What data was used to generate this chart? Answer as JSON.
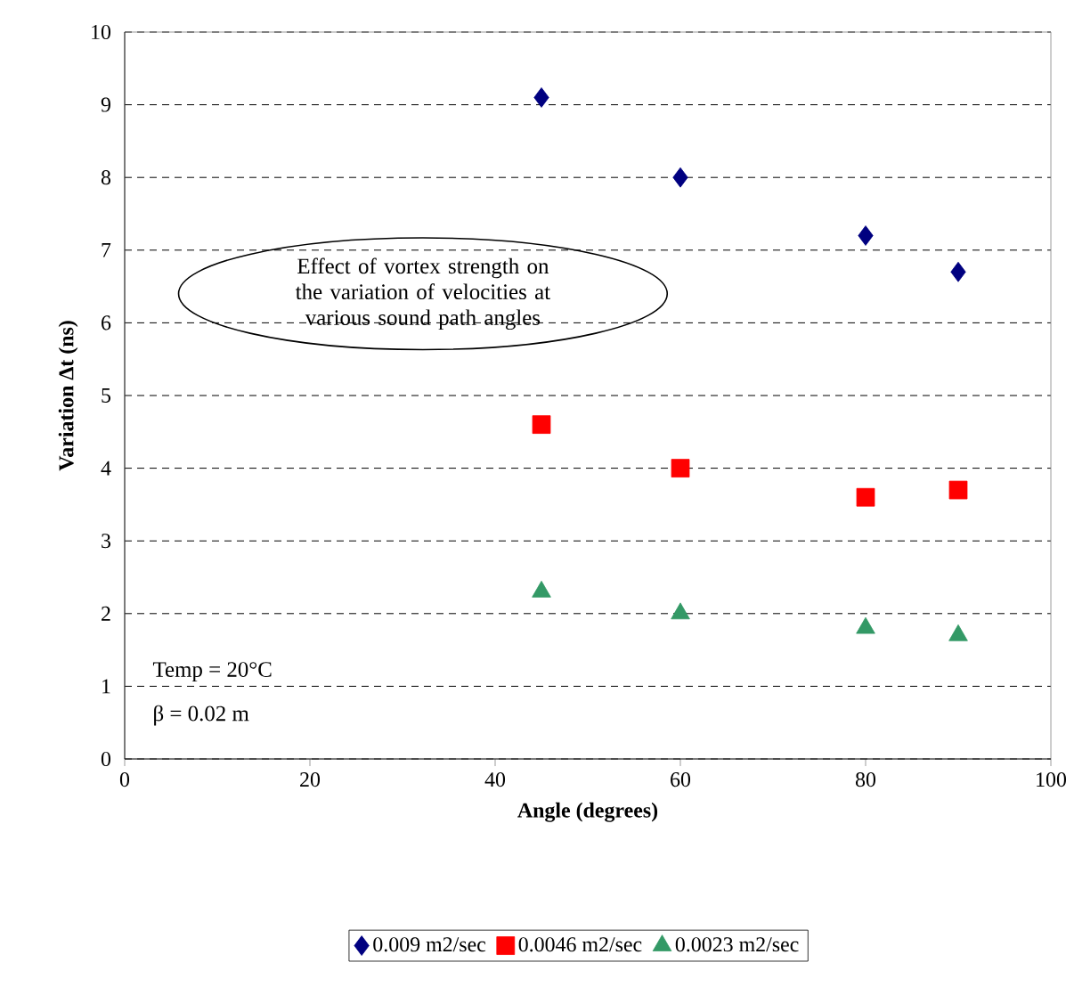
{
  "chart_data": {
    "type": "scatter",
    "xlabel": "Angle (degrees)",
    "ylabel": "Variation **Δt** (ns)",
    "x": [
      45,
      60,
      80,
      90
    ],
    "series": [
      {
        "name": "0.009 m2/sec",
        "color": "#000080",
        "marker": "diamond",
        "values": [
          9.1,
          8.0,
          7.2,
          6.7
        ]
      },
      {
        "name": "0.0046 m2/sec",
        "color": "#ff0000",
        "marker": "square",
        "values": [
          4.6,
          4.0,
          3.6,
          3.7
        ]
      },
      {
        "name": "0.0023 m2/sec",
        "color": "#339966",
        "marker": "triangle",
        "values": [
          2.3,
          2.0,
          1.8,
          1.7
        ]
      }
    ],
    "xlim": [
      0,
      100
    ],
    "xticks": [
      0,
      20,
      40,
      60,
      80,
      100
    ],
    "ylim": [
      0,
      10
    ],
    "yticks": [
      0,
      1,
      2,
      3,
      4,
      5,
      6,
      7,
      8,
      9,
      10
    ],
    "grid": "y",
    "legend": "bottom",
    "annotations": [
      "Effect of vortex strength on the variation of velocities at various sound path angles",
      "Temp = 20°C",
      "β = 0.02 m"
    ]
  }
}
